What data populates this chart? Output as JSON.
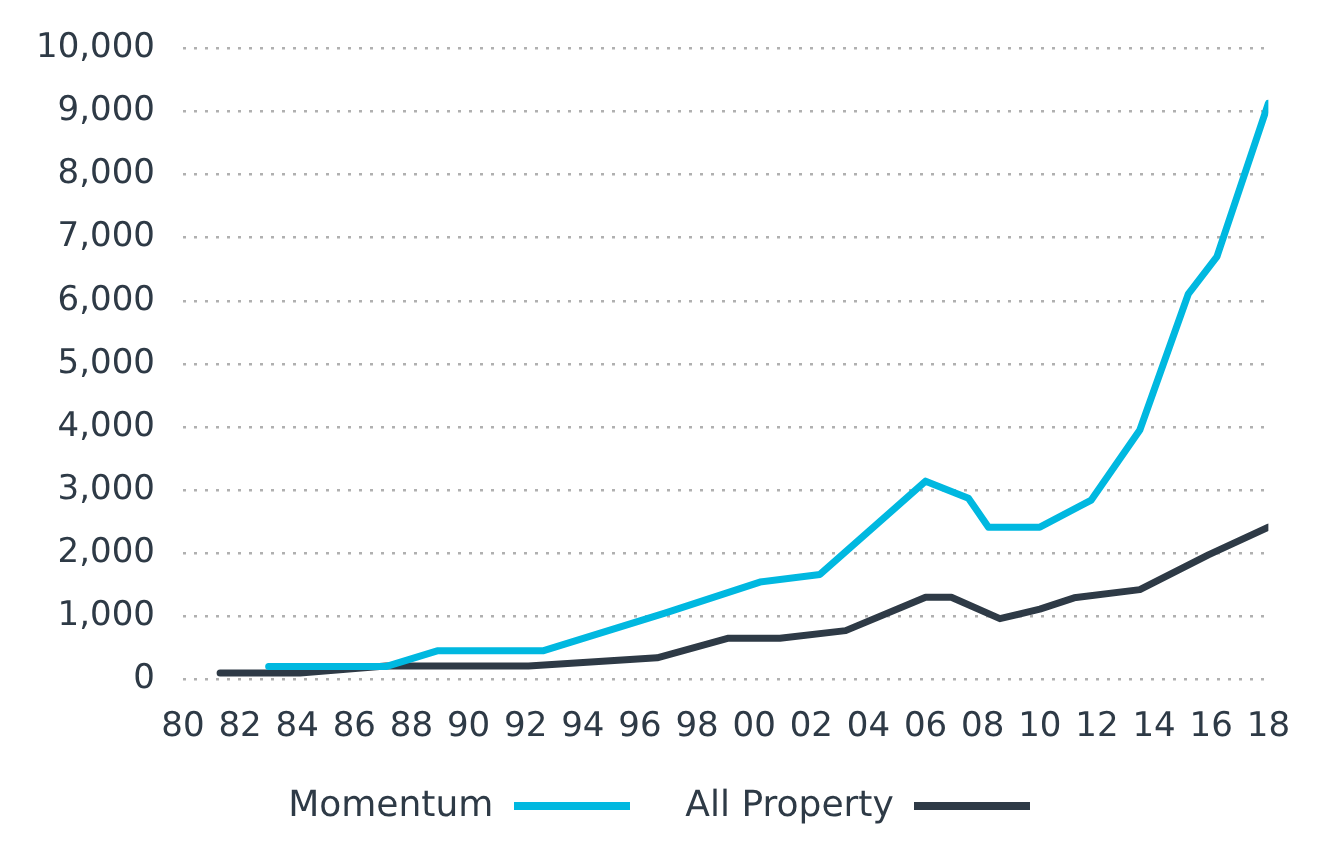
{
  "chart_data": {
    "type": "line",
    "legend": "bottom",
    "grid": "y",
    "marker": "none",
    "line_style": "solid",
    "xlim": [
      1980,
      2018
    ],
    "xticks": [
      {
        "value": 1980,
        "label": "80"
      },
      {
        "value": 1982,
        "label": "82"
      },
      {
        "value": 1984,
        "label": "84"
      },
      {
        "value": 1986,
        "label": "86"
      },
      {
        "value": 1988,
        "label": "88"
      },
      {
        "value": 1990,
        "label": "90"
      },
      {
        "value": 1992,
        "label": "92"
      },
      {
        "value": 1994,
        "label": "94"
      },
      {
        "value": 1996,
        "label": "96"
      },
      {
        "value": 1998,
        "label": "98"
      },
      {
        "value": 2000,
        "label": "00"
      },
      {
        "value": 2002,
        "label": "02"
      },
      {
        "value": 2004,
        "label": "04"
      },
      {
        "value": 2006,
        "label": "06"
      },
      {
        "value": 2008,
        "label": "08"
      },
      {
        "value": 2010,
        "label": "10"
      },
      {
        "value": 2012,
        "label": "12"
      },
      {
        "value": 2014,
        "label": "14"
      },
      {
        "value": 2016,
        "label": "16"
      },
      {
        "value": 2018,
        "label": "18"
      }
    ],
    "ylim": [
      0,
      10000
    ],
    "yticks": [
      {
        "value": 0,
        "label": "0"
      },
      {
        "value": 1000,
        "label": "1,000"
      },
      {
        "value": 2000,
        "label": "2,000"
      },
      {
        "value": 3000,
        "label": "3,000"
      },
      {
        "value": 4000,
        "label": "4,000"
      },
      {
        "value": 5000,
        "label": "5,000"
      },
      {
        "value": 6000,
        "label": "6,000"
      },
      {
        "value": 7000,
        "label": "7,000"
      },
      {
        "value": 8000,
        "label": "8,000"
      },
      {
        "value": 9000,
        "label": "9,000"
      },
      {
        "value": 10000,
        "label": "10,000"
      }
    ],
    "series": [
      {
        "name": "Momentum",
        "color": "#00b8e0",
        "x": [
          1983,
          1987.1,
          1988.9,
          1992.6,
          1996.9,
          2000.2,
          2002.3,
          2006,
          2007.5,
          2008.2,
          2010,
          2011.8,
          2013.5,
          2015.2,
          2016.2,
          2018
        ],
        "values": [
          200,
          200,
          450,
          450,
          1050,
          1540,
          1660,
          3140,
          2870,
          2410,
          2410,
          2840,
          3950,
          6110,
          6700,
          9130
        ]
      },
      {
        "name": "All Property",
        "color": "#2e3a46",
        "x": [
          1981.3,
          1984.1,
          1987.1,
          1992.1,
          1996.6,
          1999.1,
          2000.9,
          2003.2,
          2006,
          2006.9,
          2008.6,
          2010,
          2011.2,
          2013.5,
          2015.9,
          2018
        ],
        "values": [
          100,
          100,
          210,
          210,
          340,
          650,
          650,
          770,
          1300,
          1300,
          960,
          1110,
          1290,
          1420,
          1970,
          2410
        ]
      }
    ]
  }
}
